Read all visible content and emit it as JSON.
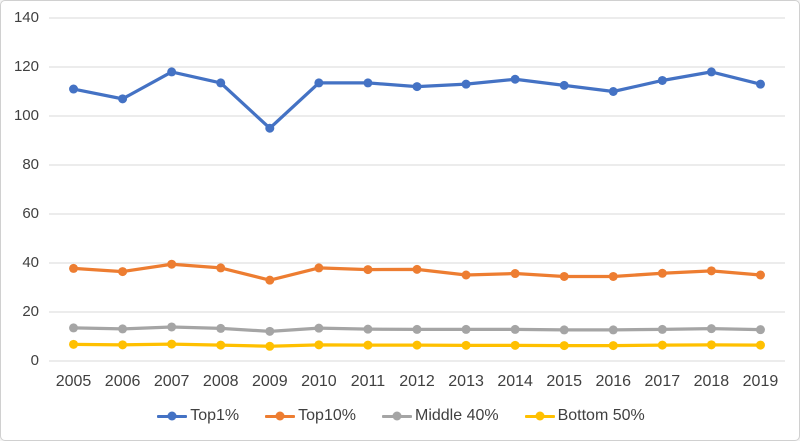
{
  "chart_data": {
    "type": "line",
    "title": "",
    "xlabel": "",
    "ylabel": "",
    "x": [
      2005,
      2006,
      2007,
      2008,
      2009,
      2010,
      2011,
      2012,
      2013,
      2014,
      2015,
      2016,
      2017,
      2018,
      2019
    ],
    "series": [
      {
        "name": "Top1%",
        "color": "#4472C4",
        "values": [
          111,
          107,
          118,
          113.5,
          95,
          113.5,
          113.5,
          112,
          113,
          115,
          112.5,
          110,
          114.5,
          118,
          113
        ]
      },
      {
        "name": "Top10%",
        "color": "#ED7D31",
        "values": [
          37.8,
          36.5,
          39.5,
          38,
          33,
          38,
          37.3,
          37.4,
          35.1,
          35.7,
          34.5,
          34.5,
          35.8,
          36.8,
          35.1
        ]
      },
      {
        "name": "Middle 40%",
        "color": "#A5A5A5",
        "values": [
          13.5,
          13.1,
          13.9,
          13.3,
          12.1,
          13.4,
          13,
          12.9,
          12.9,
          12.9,
          12.7,
          12.7,
          12.9,
          13.2,
          12.8
        ]
      },
      {
        "name": "Bottom 50%",
        "color": "#FFC000",
        "values": [
          6.8,
          6.6,
          6.9,
          6.5,
          6,
          6.6,
          6.5,
          6.5,
          6.4,
          6.4,
          6.3,
          6.3,
          6.5,
          6.6,
          6.5
        ]
      }
    ],
    "y_ticks": [
      0,
      20,
      40,
      60,
      80,
      100,
      120,
      140
    ],
    "ylim": [
      0,
      140
    ],
    "grid": true,
    "legend_position": "bottom"
  },
  "colors": {
    "gridline": "#D9D9D9",
    "axis_text": "#404040",
    "background": "#FFFFFF",
    "border": "#D0D0D0"
  }
}
